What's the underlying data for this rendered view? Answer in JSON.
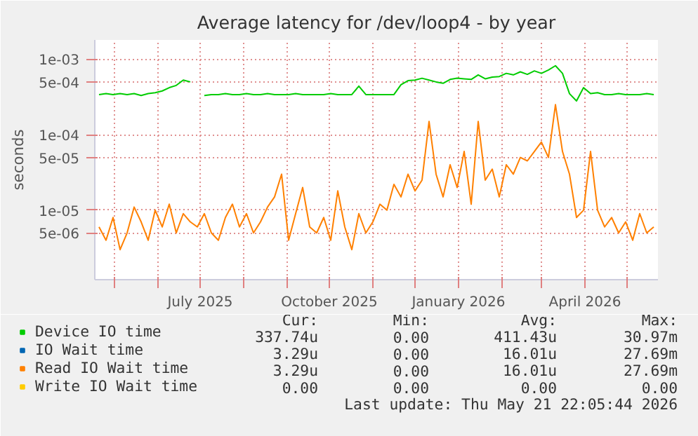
{
  "chart_data": {
    "type": "line",
    "title": "Average latency for /dev/loop4 - by year",
    "ylabel": "seconds",
    "x": [
      "2025-04-20",
      "2025-04-25",
      "2025-04-30",
      "2025-05-05",
      "2025-05-10",
      "2025-05-15",
      "2025-05-20",
      "2025-05-25",
      "2025-05-30",
      "2025-06-04",
      "2025-06-09",
      "2025-06-14",
      "2025-06-19",
      "2025-06-24",
      "2025-06-29",
      "2025-07-04",
      "2025-07-09",
      "2025-07-14",
      "2025-07-19",
      "2025-07-24",
      "2025-07-29",
      "2025-08-03",
      "2025-08-08",
      "2025-08-13",
      "2025-08-18",
      "2025-08-23",
      "2025-08-28",
      "2025-09-02",
      "2025-09-07",
      "2025-09-12",
      "2025-09-17",
      "2025-09-22",
      "2025-09-27",
      "2025-10-02",
      "2025-10-07",
      "2025-10-12",
      "2025-10-17",
      "2025-10-22",
      "2025-10-27",
      "2025-11-01",
      "2025-11-06",
      "2025-11-11",
      "2025-11-16",
      "2025-11-21",
      "2025-11-26",
      "2025-12-01",
      "2025-12-06",
      "2025-12-11",
      "2025-12-16",
      "2025-12-21",
      "2025-12-26",
      "2025-12-31",
      "2026-01-05",
      "2026-01-10",
      "2026-01-15",
      "2026-01-20",
      "2026-01-25",
      "2026-01-30",
      "2026-02-04",
      "2026-02-09",
      "2026-02-14",
      "2026-02-19",
      "2026-02-24",
      "2026-03-01",
      "2026-03-06",
      "2026-03-11",
      "2026-03-16",
      "2026-03-21",
      "2026-03-26",
      "2026-03-31",
      "2026-04-05",
      "2026-04-10",
      "2026-04-15",
      "2026-04-20",
      "2026-04-25",
      "2026-04-30",
      "2026-05-05",
      "2026-05-10",
      "2026-05-15",
      "2026-05-20"
    ],
    "series": [
      {
        "name": "Device IO time",
        "color": "#00cc00",
        "values": [
          0.00034,
          0.00035,
          0.00034,
          0.00035,
          0.00034,
          0.00035,
          0.00033,
          0.00035,
          0.00036,
          0.00038,
          0.00042,
          0.00045,
          0.00053,
          0.0005,
          null,
          0.00033,
          0.00034,
          0.00034,
          0.00035,
          0.00034,
          0.00034,
          0.00035,
          0.00034,
          0.00034,
          0.00035,
          0.00034,
          0.00034,
          0.00034,
          0.00035,
          0.00034,
          0.00034,
          0.00034,
          0.00034,
          0.00035,
          0.00034,
          0.00034,
          0.00034,
          0.00044,
          0.00034,
          0.00034,
          0.00034,
          0.00034,
          0.00034,
          0.00046,
          0.00052,
          0.00053,
          0.00056,
          0.00053,
          0.0005,
          0.00048,
          0.00054,
          0.00056,
          0.00055,
          0.00054,
          0.00062,
          0.00055,
          0.00058,
          0.00059,
          0.00065,
          0.00062,
          0.00068,
          0.00063,
          0.0007,
          0.00065,
          0.00072,
          0.00082,
          0.00065,
          0.00035,
          0.00028,
          0.00042,
          0.00035,
          0.00036,
          0.00034,
          0.00034,
          0.00035,
          0.00034,
          0.00034,
          0.00034,
          0.00035,
          0.00034
        ]
      },
      {
        "name": "IO Wait time",
        "color": "#0066b3",
        "values": [
          null,
          null,
          null,
          null,
          null,
          null,
          null,
          null,
          null,
          null,
          null,
          null,
          null,
          null,
          null,
          null,
          null,
          null,
          null,
          null,
          null,
          null,
          null,
          null,
          null,
          null,
          null,
          null,
          null,
          null,
          null,
          null,
          null,
          null,
          null,
          null,
          null,
          null,
          null,
          null,
          null,
          null,
          null,
          null,
          null,
          null,
          null,
          null,
          null,
          null,
          null,
          null,
          null,
          null,
          null,
          null,
          null,
          null,
          null,
          null,
          null,
          null,
          null,
          null,
          null,
          null,
          null,
          null,
          null,
          null,
          null,
          null,
          null,
          null,
          null,
          null,
          null,
          null,
          null,
          null
        ]
      },
      {
        "name": "Read IO Wait time",
        "color": "#ff8000",
        "values": [
          6e-06,
          4e-06,
          8e-06,
          3e-06,
          5e-06,
          1.1e-05,
          7e-06,
          4e-06,
          1e-05,
          6e-06,
          1.2e-05,
          5e-06,
          9e-06,
          7e-06,
          6e-06,
          9e-06,
          5e-06,
          4e-06,
          8e-06,
          1.2e-05,
          6e-06,
          9e-06,
          5e-06,
          7e-06,
          1.1e-05,
          1.5e-05,
          3e-05,
          4e-06,
          9e-06,
          2e-05,
          6e-06,
          5e-06,
          8e-06,
          4e-06,
          1.8e-05,
          6e-06,
          3e-06,
          9e-06,
          5e-06,
          7e-06,
          1.2e-05,
          1e-05,
          2.2e-05,
          1.5e-05,
          3e-05,
          1.8e-05,
          2.5e-05,
          0.00015,
          3e-05,
          1.5e-05,
          4e-05,
          2e-05,
          6e-05,
          1.2e-05,
          0.00015,
          2.5e-05,
          3.5e-05,
          1.5e-05,
          4e-05,
          3e-05,
          5e-05,
          4.5e-05,
          6e-05,
          8e-05,
          5e-05,
          0.00025,
          6e-05,
          3e-05,
          8e-06,
          1e-05,
          6e-05,
          1e-05,
          6e-06,
          8e-06,
          5e-06,
          7e-06,
          4e-06,
          9e-06,
          5e-06,
          6e-06
        ]
      },
      {
        "name": "Write IO Wait time",
        "color": "#ffcc00",
        "values": [
          null,
          null,
          null,
          null,
          null,
          null,
          null,
          null,
          null,
          null,
          null,
          null,
          null,
          null,
          null,
          null,
          null,
          null,
          null,
          null,
          null,
          null,
          null,
          null,
          null,
          null,
          null,
          null,
          null,
          null,
          null,
          null,
          null,
          null,
          null,
          null,
          null,
          null,
          null,
          null,
          null,
          null,
          null,
          null,
          null,
          null,
          null,
          null,
          null,
          null,
          null,
          null,
          null,
          null,
          null,
          null,
          null,
          null,
          null,
          null,
          null,
          null,
          null,
          null,
          null,
          null,
          null,
          null,
          null,
          null,
          null,
          null,
          null,
          null,
          null,
          null,
          null,
          null,
          null,
          null
        ]
      }
    ],
    "log": "y",
    "ylim": [
      1.2e-06,
      0.0018
    ],
    "yticks": [
      {
        "value": 5e-06,
        "label": "5e-06"
      },
      {
        "value": 1e-05,
        "label": "1e-05"
      },
      {
        "value": 5e-05,
        "label": "5e-05"
      },
      {
        "value": 0.0001,
        "label": "1e-04"
      },
      {
        "value": 0.0005,
        "label": "5e-04"
      },
      {
        "value": 0.001,
        "label": "1e-03"
      }
    ],
    "xlim": [
      "2025-04-17",
      "2026-05-23"
    ],
    "xticks": [
      {
        "value": "2025-05-01",
        "label": null
      },
      {
        "value": "2025-06-01",
        "label": null
      },
      {
        "value": "2025-07-01",
        "label": "July 2025"
      },
      {
        "value": "2025-08-01",
        "label": null
      },
      {
        "value": "2025-09-01",
        "label": null
      },
      {
        "value": "2025-10-01",
        "label": "October 2025"
      },
      {
        "value": "2025-11-01",
        "label": null
      },
      {
        "value": "2025-12-01",
        "label": null
      },
      {
        "value": "2026-01-01",
        "label": "January 2026"
      },
      {
        "value": "2026-02-01",
        "label": null
      },
      {
        "value": "2026-03-01",
        "label": null
      },
      {
        "value": "2026-04-01",
        "label": "April 2026"
      },
      {
        "value": "2026-05-01",
        "label": null
      }
    ],
    "grid": true,
    "legend": "bottom",
    "annotations": [
      "Cur:",
      "Min:",
      "Avg:",
      "Max:",
      "337.74u",
      "0.00",
      "411.43u",
      "30.97m",
      "3.29u",
      "0.00",
      "16.01u",
      "27.69m",
      "3.29u",
      "0.00",
      "16.01u",
      "27.69m",
      "0.00",
      "0.00",
      "0.00",
      "0.00",
      "Last update: Thu May 21 22:05:44 2026"
    ]
  }
}
